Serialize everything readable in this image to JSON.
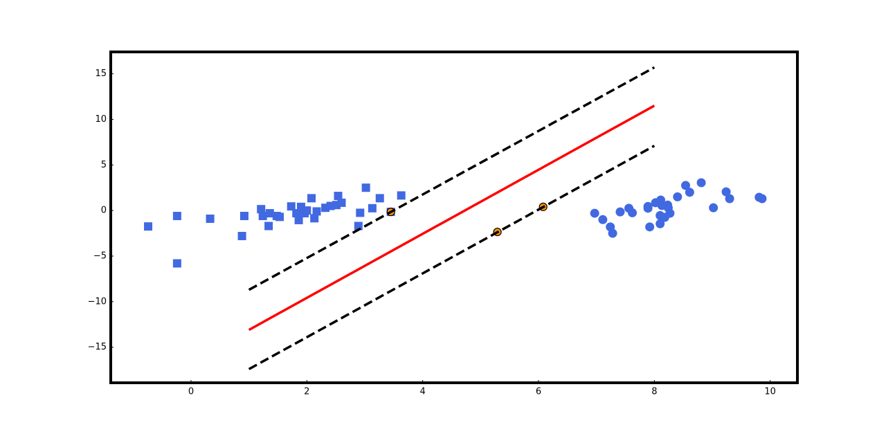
{
  "chart_data": {
    "type": "scatter",
    "xlim": [
      -1.386,
      10.47
    ],
    "ylim": [
      -18.9,
      17.4
    ],
    "xticks": [
      0,
      2,
      4,
      6,
      8,
      10
    ],
    "yticks": [
      {
        "value": -15,
        "label": "−15"
      },
      {
        "value": -10,
        "label": "−10"
      },
      {
        "value": -5,
        "label": "−5"
      },
      0,
      5,
      10,
      15
    ],
    "grid": false,
    "series": [
      {
        "marker": "square",
        "color": "#4169e1",
        "x": [
          -0.74,
          -0.24,
          -0.24,
          0.33,
          0.88,
          0.92,
          1.21,
          1.24,
          1.36,
          1.34,
          1.48,
          1.53,
          1.73,
          1.82,
          1.86,
          1.9,
          1.96,
          2.0,
          2.08,
          2.13,
          2.17,
          2.32,
          2.41,
          2.51,
          2.54,
          2.6,
          2.92,
          2.89,
          3.02,
          3.13,
          3.26,
          3.45,
          3.63
        ],
        "values": [
          -1.75,
          -0.6,
          -5.8,
          -0.9,
          -2.8,
          -0.6,
          0.15,
          -0.6,
          -0.3,
          -1.7,
          -0.6,
          -0.7,
          0.45,
          -0.3,
          -1.05,
          0.4,
          -0.3,
          0,
          1.35,
          -0.85,
          -0.1,
          0.3,
          0.5,
          0.6,
          1.6,
          0.85,
          -0.25,
          -1.7,
          2.5,
          0.25,
          1.35,
          -0.15,
          1.65
        ]
      },
      {
        "marker": "circle",
        "color": "#4169e1",
        "x": [
          6.97,
          7.11,
          7.24,
          7.28,
          7.41,
          7.56,
          7.62,
          7.89,
          7.89,
          7.92,
          8.02,
          8.11,
          8.1,
          8.1,
          8.13,
          8.18,
          8.23,
          8.24,
          8.27,
          8.4,
          8.54,
          8.61,
          8.81,
          9.02,
          9.24,
          9.3,
          9.81,
          9.86
        ],
        "values": [
          -0.3,
          -1.0,
          -1.8,
          -2.5,
          -0.15,
          0.25,
          -0.25,
          0.25,
          0.45,
          -1.8,
          0.85,
          1.15,
          -0.55,
          -1.45,
          0.55,
          -0.75,
          0.6,
          0.3,
          -0.3,
          1.5,
          2.75,
          2.0,
          3.05,
          0.3,
          2.05,
          1.3,
          1.45,
          1.3
        ]
      },
      {
        "marker": "circle-small",
        "color": "#ff8c00",
        "x": [
          3.45,
          5.29,
          6.08
        ],
        "values": [
          -0.15,
          -2.35,
          0.4
        ]
      }
    ],
    "lines": [
      {
        "x": [
          1,
          8
        ],
        "values": [
          -8.7,
          15.7
        ],
        "color": "#000000",
        "dash": true
      },
      {
        "x": [
          1,
          8
        ],
        "values": [
          -13.1,
          11.5
        ],
        "color": "#ff0000",
        "dash": false
      },
      {
        "x": [
          1,
          8
        ],
        "values": [
          -17.4,
          7.1
        ],
        "color": "#000000",
        "dash": true
      }
    ]
  }
}
